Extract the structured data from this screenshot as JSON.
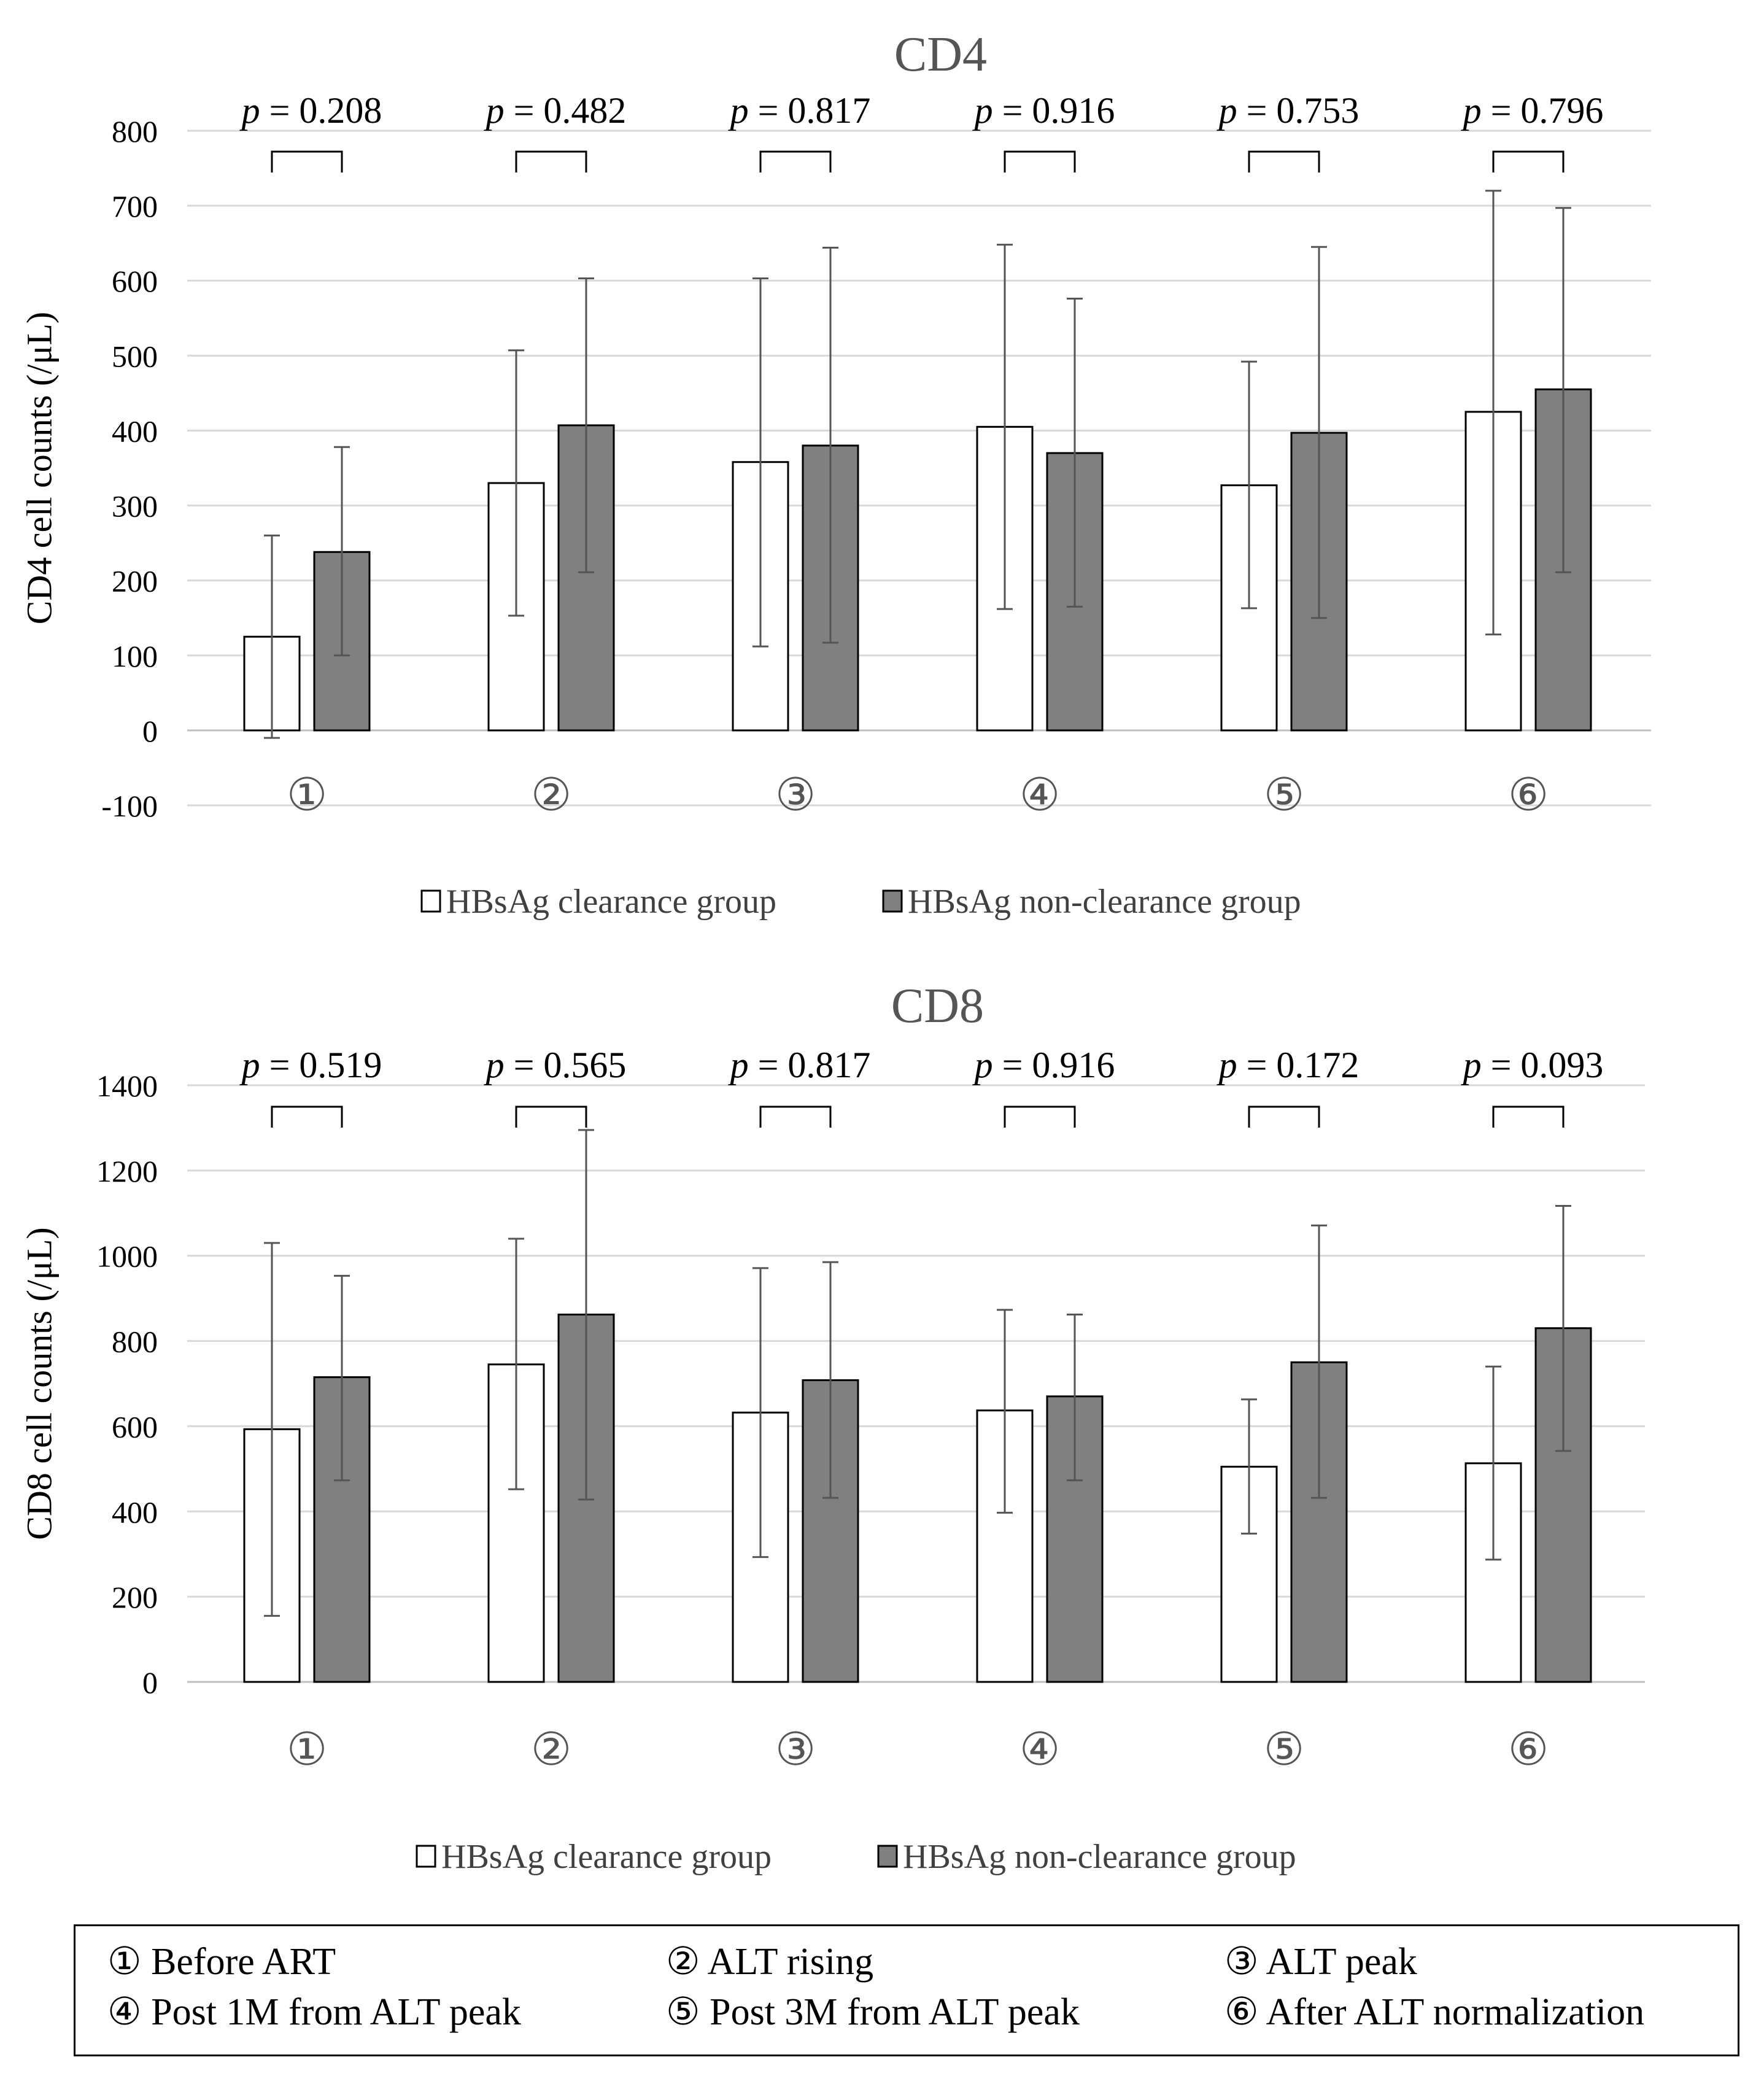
{
  "chart_data": [
    {
      "type": "bar",
      "title": "CD4",
      "ylabel": "CD4 cell counts (/μL)",
      "xlabel": "",
      "ylim": [
        -100,
        800
      ],
      "yticks": [
        -100,
        0,
        100,
        200,
        300,
        400,
        500,
        600,
        700,
        800
      ],
      "grid": true,
      "legend_position": "bottom",
      "categories": [
        "①",
        "②",
        "③",
        "④",
        "⑤",
        "⑥"
      ],
      "series": [
        {
          "name": "HBsAg clearance group",
          "color": "#ffffff",
          "values": [
            125,
            330,
            358,
            405,
            327,
            425
          ],
          "error_low": [
            -10,
            153,
            112,
            162,
            163,
            128
          ],
          "error_high": [
            260,
            507,
            603,
            648,
            492,
            720
          ]
        },
        {
          "name": "HBsAg non-clearance group",
          "color": "#808080",
          "values": [
            238,
            407,
            380,
            370,
            397,
            455
          ],
          "error_low": [
            100,
            211,
            117,
            165,
            150,
            211
          ],
          "error_high": [
            378,
            603,
            644,
            576,
            645,
            697
          ]
        }
      ],
      "p_values": [
        "p = 0.208",
        "p = 0.482",
        "p = 0.817",
        "p = 0.916",
        "p = 0.753",
        "p = 0.796"
      ]
    },
    {
      "type": "bar",
      "title": "CD8",
      "ylabel": "CD8 cell counts (/μL)",
      "xlabel": "",
      "ylim": [
        0,
        1400
      ],
      "yticks": [
        0,
        200,
        400,
        600,
        800,
        1000,
        1200,
        1400
      ],
      "grid": true,
      "legend_position": "bottom",
      "categories": [
        "①",
        "②",
        "③",
        "④",
        "⑤",
        "⑥"
      ],
      "series": [
        {
          "name": "HBsAg clearance group",
          "color": "#ffffff",
          "values": [
            593,
            745,
            632,
            637,
            505,
            513
          ],
          "error_low": [
            155,
            452,
            293,
            397,
            348,
            287
          ],
          "error_high": [
            1030,
            1040,
            971,
            873,
            663,
            740
          ]
        },
        {
          "name": "HBsAg non-clearance group",
          "color": "#808080",
          "values": [
            715,
            862,
            708,
            670,
            750,
            830
          ],
          "error_low": [
            473,
            428,
            432,
            473,
            432,
            542
          ],
          "error_high": [
            953,
            1295,
            985,
            862,
            1071,
            1117
          ]
        }
      ],
      "p_values": [
        "p = 0.519",
        "p = 0.565",
        "p = 0.817",
        "p = 0.916",
        "p = 0.172",
        "p = 0.093"
      ]
    }
  ],
  "footnote": {
    "items": [
      "① Before ART",
      "② ALT rising",
      "③ ALT peak",
      "④ Post 1M from ALT peak",
      "⑤ Post 3M from ALT peak",
      "⑥ After ALT normalization"
    ]
  }
}
